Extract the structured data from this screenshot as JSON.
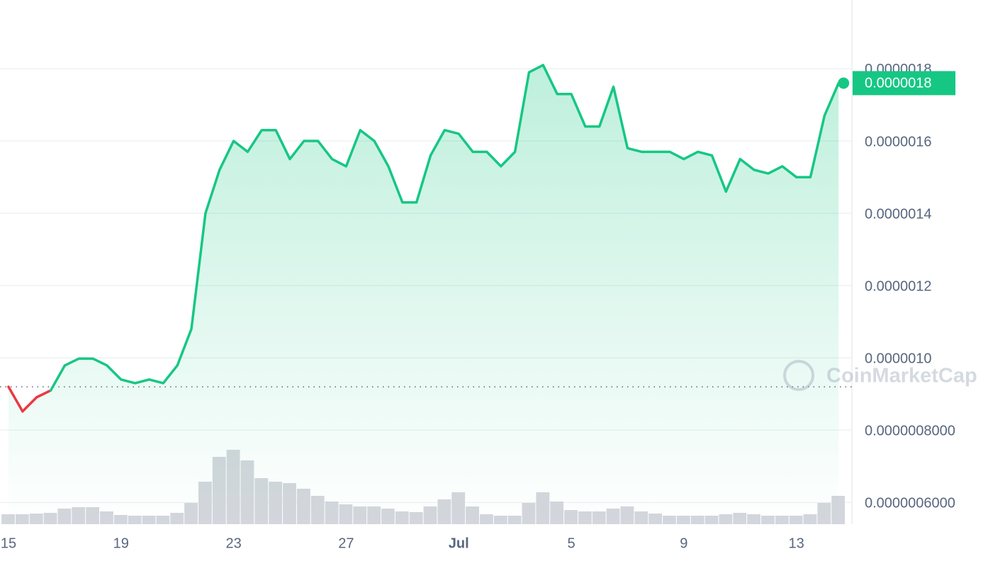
{
  "chart_data": {
    "type": "line",
    "categories": [
      "15",
      null,
      null,
      null,
      null,
      null,
      null,
      null,
      "19",
      null,
      null,
      null,
      null,
      null,
      null,
      null,
      "23",
      null,
      null,
      null,
      null,
      null,
      null,
      null,
      "27",
      null,
      null,
      null,
      null,
      null,
      null,
      null,
      "Jul",
      null,
      null,
      null,
      null,
      null,
      null,
      null,
      "5",
      null,
      null,
      null,
      null,
      null,
      null,
      null,
      "9",
      null,
      null,
      null,
      null,
      null,
      null,
      null,
      "13",
      null,
      null,
      null
    ],
    "series": [
      {
        "color": "#16c784",
        "down_color": "#ea3943",
        "values": [
          9.2e-07,
          8.52e-07,
          8.91e-07,
          9.1e-07,
          9.79e-07,
          9.98e-07,
          9.98e-07,
          9.79e-07,
          9.4e-07,
          9.3e-07,
          9.4e-07,
          9.3e-07,
          9.79e-07,
          1.08e-06,
          1.4e-06,
          1.52e-06,
          1.6e-06,
          1.57e-06,
          1.63e-06,
          1.63e-06,
          1.55e-06,
          1.6e-06,
          1.6e-06,
          1.55e-06,
          1.53e-06,
          1.63e-06,
          1.6e-06,
          1.53e-06,
          1.43e-06,
          1.43e-06,
          1.56e-06,
          1.63e-06,
          1.62e-06,
          1.57e-06,
          1.57e-06,
          1.53e-06,
          1.57e-06,
          1.79e-06,
          1.81e-06,
          1.73e-06,
          1.73e-06,
          1.64e-06,
          1.64e-06,
          1.75e-06,
          1.58e-06,
          1.57e-06,
          1.57e-06,
          1.57e-06,
          1.55e-06,
          1.57e-06,
          1.56e-06,
          1.46e-06,
          1.55e-06,
          1.52e-06,
          1.51e-06,
          1.53e-06,
          1.5e-06,
          1.5e-06,
          1.67e-06,
          1.76e-06
        ]
      }
    ],
    "volume": {
      "color": "#d3d6dc",
      "ylim": [
        0,
        120
      ],
      "values": [
        14,
        14,
        15,
        16,
        22,
        24,
        24,
        18,
        13,
        12,
        12,
        12,
        16,
        30,
        60,
        95,
        105,
        90,
        65,
        60,
        58,
        50,
        40,
        32,
        28,
        25,
        25,
        22,
        18,
        17,
        25,
        35,
        45,
        25,
        14,
        12,
        12,
        30,
        45,
        32,
        20,
        18,
        18,
        22,
        25,
        18,
        15,
        12,
        12,
        12,
        12,
        14,
        16,
        14,
        12,
        12,
        12,
        14,
        30,
        40
      ]
    },
    "ylim": [
      5.4e-07,
      1.99e-06
    ],
    "yticks": [
      {
        "value": 1.8e-06,
        "label": "0.0000018"
      },
      {
        "value": 1.6e-06,
        "label": "0.0000016"
      },
      {
        "value": 1.4e-06,
        "label": "0.0000014"
      },
      {
        "value": 1.2e-06,
        "label": "0.0000012"
      },
      {
        "value": 1e-06,
        "label": "0.0000010"
      },
      {
        "value": 8e-07,
        "label": "0.0000008000"
      },
      {
        "value": 6e-07,
        "label": "0.0000006000"
      }
    ],
    "grid": true,
    "last_price_label": "0.0000018",
    "watermark": "CoinMarketCap"
  }
}
